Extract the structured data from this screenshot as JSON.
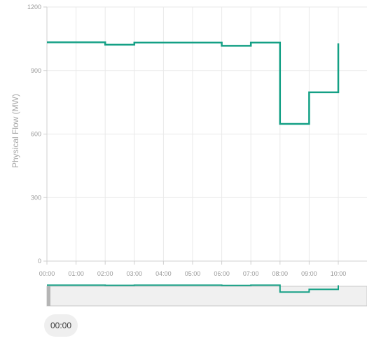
{
  "chart_data": {
    "type": "line",
    "step": true,
    "ylabel": "Physical Flow (MW)",
    "xlabel": "",
    "title": "",
    "ylim": [
      0,
      1200
    ],
    "y_ticks": [
      "0",
      "300",
      "600",
      "900",
      "1200"
    ],
    "x_ticks": [
      "00:00",
      "01:00",
      "02:00",
      "03:00",
      "04:00",
      "05:00",
      "06:00",
      "07:00",
      "08:00",
      "09:00",
      "10:00"
    ],
    "grid": true,
    "color": "#14a085",
    "series": [
      {
        "x": [
          "00:00",
          "01:00",
          "02:00",
          "03:00",
          "04:00",
          "05:00",
          "06:00",
          "07:00",
          "08:00",
          "09:00",
          "10:00"
        ],
        "y": [
          1033,
          1033,
          1022,
          1032,
          1032,
          1032,
          1017,
          1032,
          648,
          797,
          1028
        ]
      }
    ]
  },
  "time_control": {
    "label": "00:00"
  }
}
